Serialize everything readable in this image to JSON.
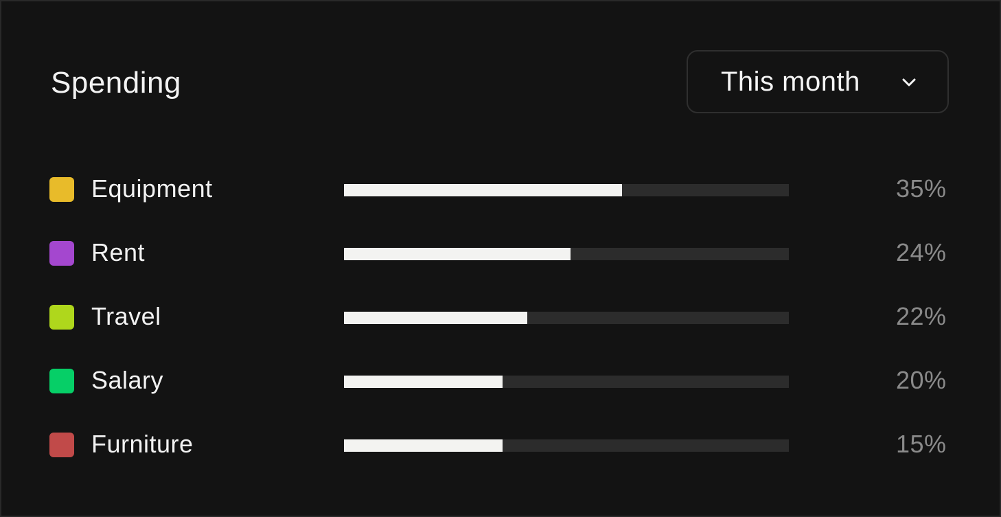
{
  "header": {
    "title": "Spending",
    "period": {
      "selected": "This month",
      "icon": "chevron-down-icon"
    }
  },
  "colors": {
    "background": "#131313",
    "bar_fill": "#f3f3f1",
    "bar_track": "#2c2c2c",
    "percent_text": "#8a8a8a"
  },
  "categories": [
    {
      "id": "equipment",
      "label": "Equipment",
      "percent": "35%",
      "bar_fraction": 0.625,
      "color": "#e8bb2a"
    },
    {
      "id": "rent",
      "label": "Rent",
      "percent": "24%",
      "bar_fraction": 0.509,
      "color": "#a447cf"
    },
    {
      "id": "travel",
      "label": "Travel",
      "percent": "22%",
      "bar_fraction": 0.412,
      "color": "#afd71c"
    },
    {
      "id": "salary",
      "label": "Salary",
      "percent": "20%",
      "bar_fraction": 0.356,
      "color": "#06cf67"
    },
    {
      "id": "furniture",
      "label": "Furniture",
      "percent": "15%",
      "bar_fraction": 0.356,
      "color": "#c14a49"
    }
  ]
}
